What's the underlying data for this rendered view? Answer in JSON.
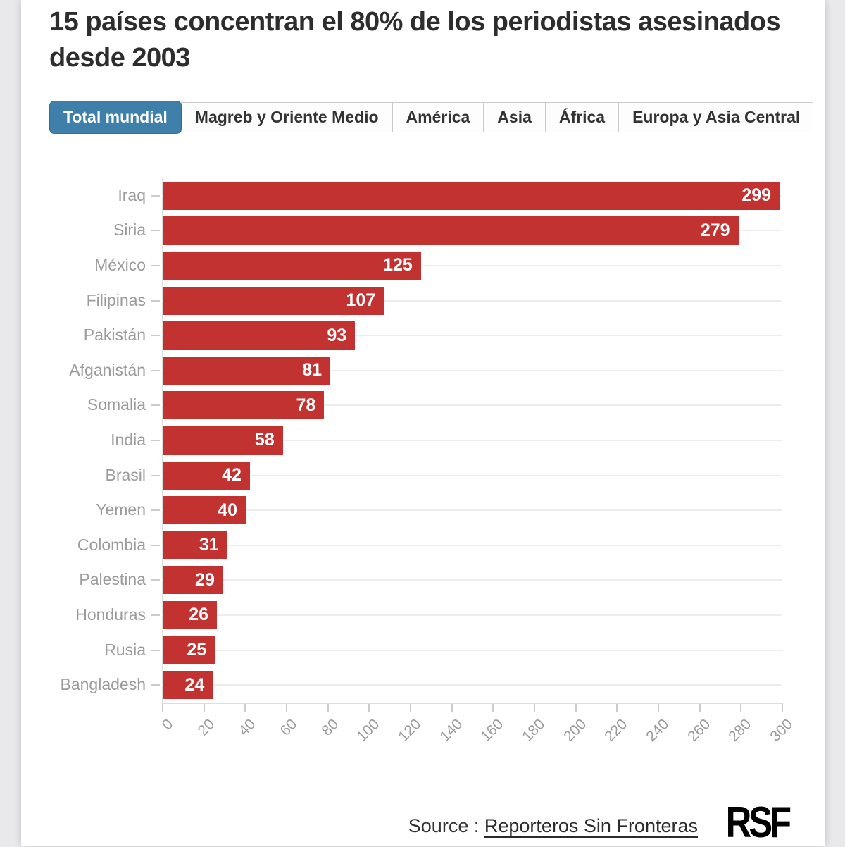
{
  "page": {
    "title": "15 países concentran el 80% de los periodistas asesinados desde 2003",
    "source_prefix": "Source :",
    "source_link": "Reporteros Sin Fronteras",
    "logo_text": "RSF"
  },
  "tabs": [
    {
      "id": "total-mundial",
      "label": "Total mundial",
      "selected": true
    },
    {
      "id": "magreb-oriente-medio",
      "label": "Magreb y Oriente Medio",
      "selected": false
    },
    {
      "id": "america",
      "label": "América",
      "selected": false
    },
    {
      "id": "asia",
      "label": "Asia",
      "selected": false
    },
    {
      "id": "africa",
      "label": "África",
      "selected": false
    },
    {
      "id": "europa-asia-central",
      "label": "Europa y Asia Central",
      "selected": false
    }
  ],
  "colors": {
    "bar": "#c23230",
    "selected_tab": "#3f80ab",
    "selected_tab_border": "#2f6f99",
    "tab_text": "#333333",
    "category_label": "#9b9b9b",
    "axis": "#dddddd",
    "gridline": "#ededed",
    "title_text": "#2d2d2d",
    "background": "#e9e9eb"
  },
  "chart_data": {
    "type": "bar",
    "orientation": "horizontal",
    "title": "15 países concentran el 80% de los periodistas asesinados desde 2003",
    "categories": [
      "Iraq",
      "Siria",
      "México",
      "Filipinas",
      "Pakistán",
      "Afganistán",
      "Somalia",
      "India",
      "Brasil",
      "Yemen",
      "Colombia",
      "Palestina",
      "Honduras",
      "Rusia",
      "Bangladesh"
    ],
    "values": [
      299,
      279,
      125,
      107,
      93,
      81,
      78,
      58,
      42,
      40,
      31,
      29,
      26,
      25,
      24
    ],
    "xlabel": "",
    "ylabel": "",
    "xlim": [
      0,
      300
    ],
    "x_ticks": [
      0,
      20,
      40,
      60,
      80,
      100,
      120,
      140,
      160,
      180,
      200,
      220,
      240,
      260,
      280,
      300
    ],
    "grid": "horizontal-row-lines",
    "value_labels": "inside-end",
    "legend": "none",
    "bar_color": "#c23230"
  }
}
